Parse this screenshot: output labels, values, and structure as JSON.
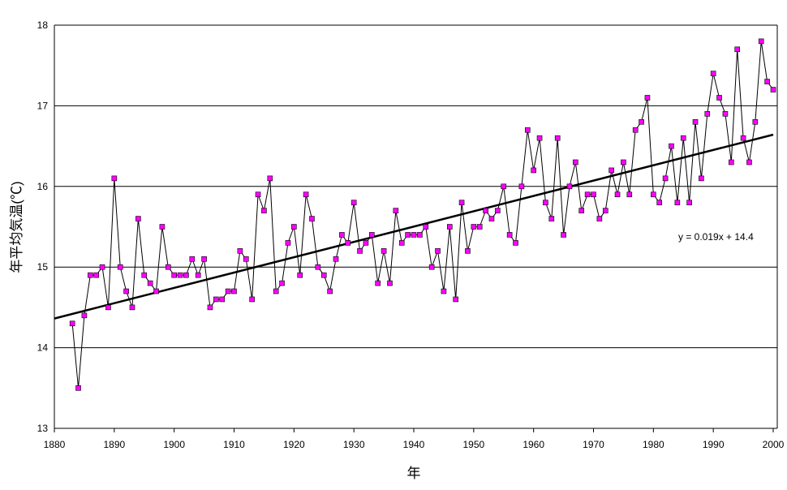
{
  "chart_data": {
    "type": "line",
    "title": "",
    "xlabel": "年",
    "ylabel": "年平均気温(℃)",
    "xlim": [
      1880,
      2000
    ],
    "ylim": [
      13,
      18
    ],
    "xticks": [
      1880,
      1890,
      1900,
      1910,
      1920,
      1930,
      1940,
      1950,
      1960,
      1970,
      1980,
      1990,
      2000
    ],
    "yticks": [
      13,
      14,
      15,
      16,
      17,
      18
    ],
    "grid": "horizontal",
    "marker_color": "#ff00ff",
    "line_color": "#000000",
    "series": [
      {
        "name": "年平均気温",
        "x": [
          1883,
          1884,
          1885,
          1886,
          1887,
          1888,
          1889,
          1890,
          1891,
          1892,
          1893,
          1894,
          1895,
          1896,
          1897,
          1898,
          1899,
          1900,
          1901,
          1902,
          1903,
          1904,
          1905,
          1906,
          1907,
          1908,
          1909,
          1910,
          1911,
          1912,
          1913,
          1914,
          1915,
          1916,
          1917,
          1918,
          1919,
          1920,
          1921,
          1922,
          1923,
          1924,
          1925,
          1926,
          1927,
          1928,
          1929,
          1930,
          1931,
          1932,
          1933,
          1934,
          1935,
          1936,
          1937,
          1938,
          1939,
          1940,
          1941,
          1942,
          1943,
          1944,
          1945,
          1946,
          1947,
          1948,
          1949,
          1950,
          1951,
          1952,
          1953,
          1954,
          1955,
          1956,
          1957,
          1958,
          1959,
          1960,
          1961,
          1962,
          1963,
          1964,
          1965,
          1966,
          1967,
          1968,
          1969,
          1970,
          1971,
          1972,
          1973,
          1974,
          1975,
          1976,
          1977,
          1978,
          1979,
          1980,
          1981,
          1982,
          1983,
          1984,
          1985,
          1986,
          1987,
          1988,
          1989,
          1990,
          1991,
          1992,
          1993,
          1994,
          1995,
          1996,
          1997,
          1998,
          1999,
          2000
        ],
        "values": [
          14.3,
          13.5,
          14.4,
          14.9,
          14.9,
          15.0,
          14.5,
          16.1,
          15.0,
          14.7,
          14.5,
          15.6,
          14.9,
          14.8,
          14.7,
          15.5,
          15.0,
          14.9,
          14.9,
          14.9,
          15.1,
          14.9,
          15.1,
          14.5,
          14.6,
          14.6,
          14.7,
          14.7,
          15.2,
          15.1,
          14.6,
          15.9,
          15.7,
          16.1,
          14.7,
          14.8,
          15.3,
          15.5,
          14.9,
          15.9,
          15.6,
          15.0,
          14.9,
          14.7,
          15.1,
          15.4,
          15.3,
          15.8,
          15.2,
          15.3,
          15.4,
          14.8,
          15.2,
          14.8,
          15.7,
          15.3,
          15.4,
          15.4,
          15.4,
          15.5,
          15.0,
          15.2,
          14.7,
          15.5,
          14.6,
          15.8,
          15.2,
          15.5,
          15.5,
          15.7,
          15.6,
          15.7,
          16.0,
          15.4,
          15.3,
          16.0,
          16.7,
          16.2,
          16.6,
          15.8,
          15.6,
          16.6,
          15.4,
          16.0,
          16.3,
          15.7,
          15.9,
          15.9,
          15.6,
          15.7,
          16.2,
          15.9,
          16.3,
          15.9,
          16.7,
          16.8,
          17.1,
          15.9,
          15.8,
          16.1,
          16.5,
          15.8,
          16.6,
          15.8,
          16.8,
          16.1,
          16.9,
          17.4,
          17.1,
          16.9,
          16.3,
          17.7,
          16.6,
          16.3,
          16.8,
          17.8,
          17.3,
          17.2
        ]
      }
    ],
    "trendline": {
      "label": "y = 0.019x + 14.4",
      "slope": 0.019,
      "intercept": 14.4,
      "x_origin_year": 1882
    }
  }
}
